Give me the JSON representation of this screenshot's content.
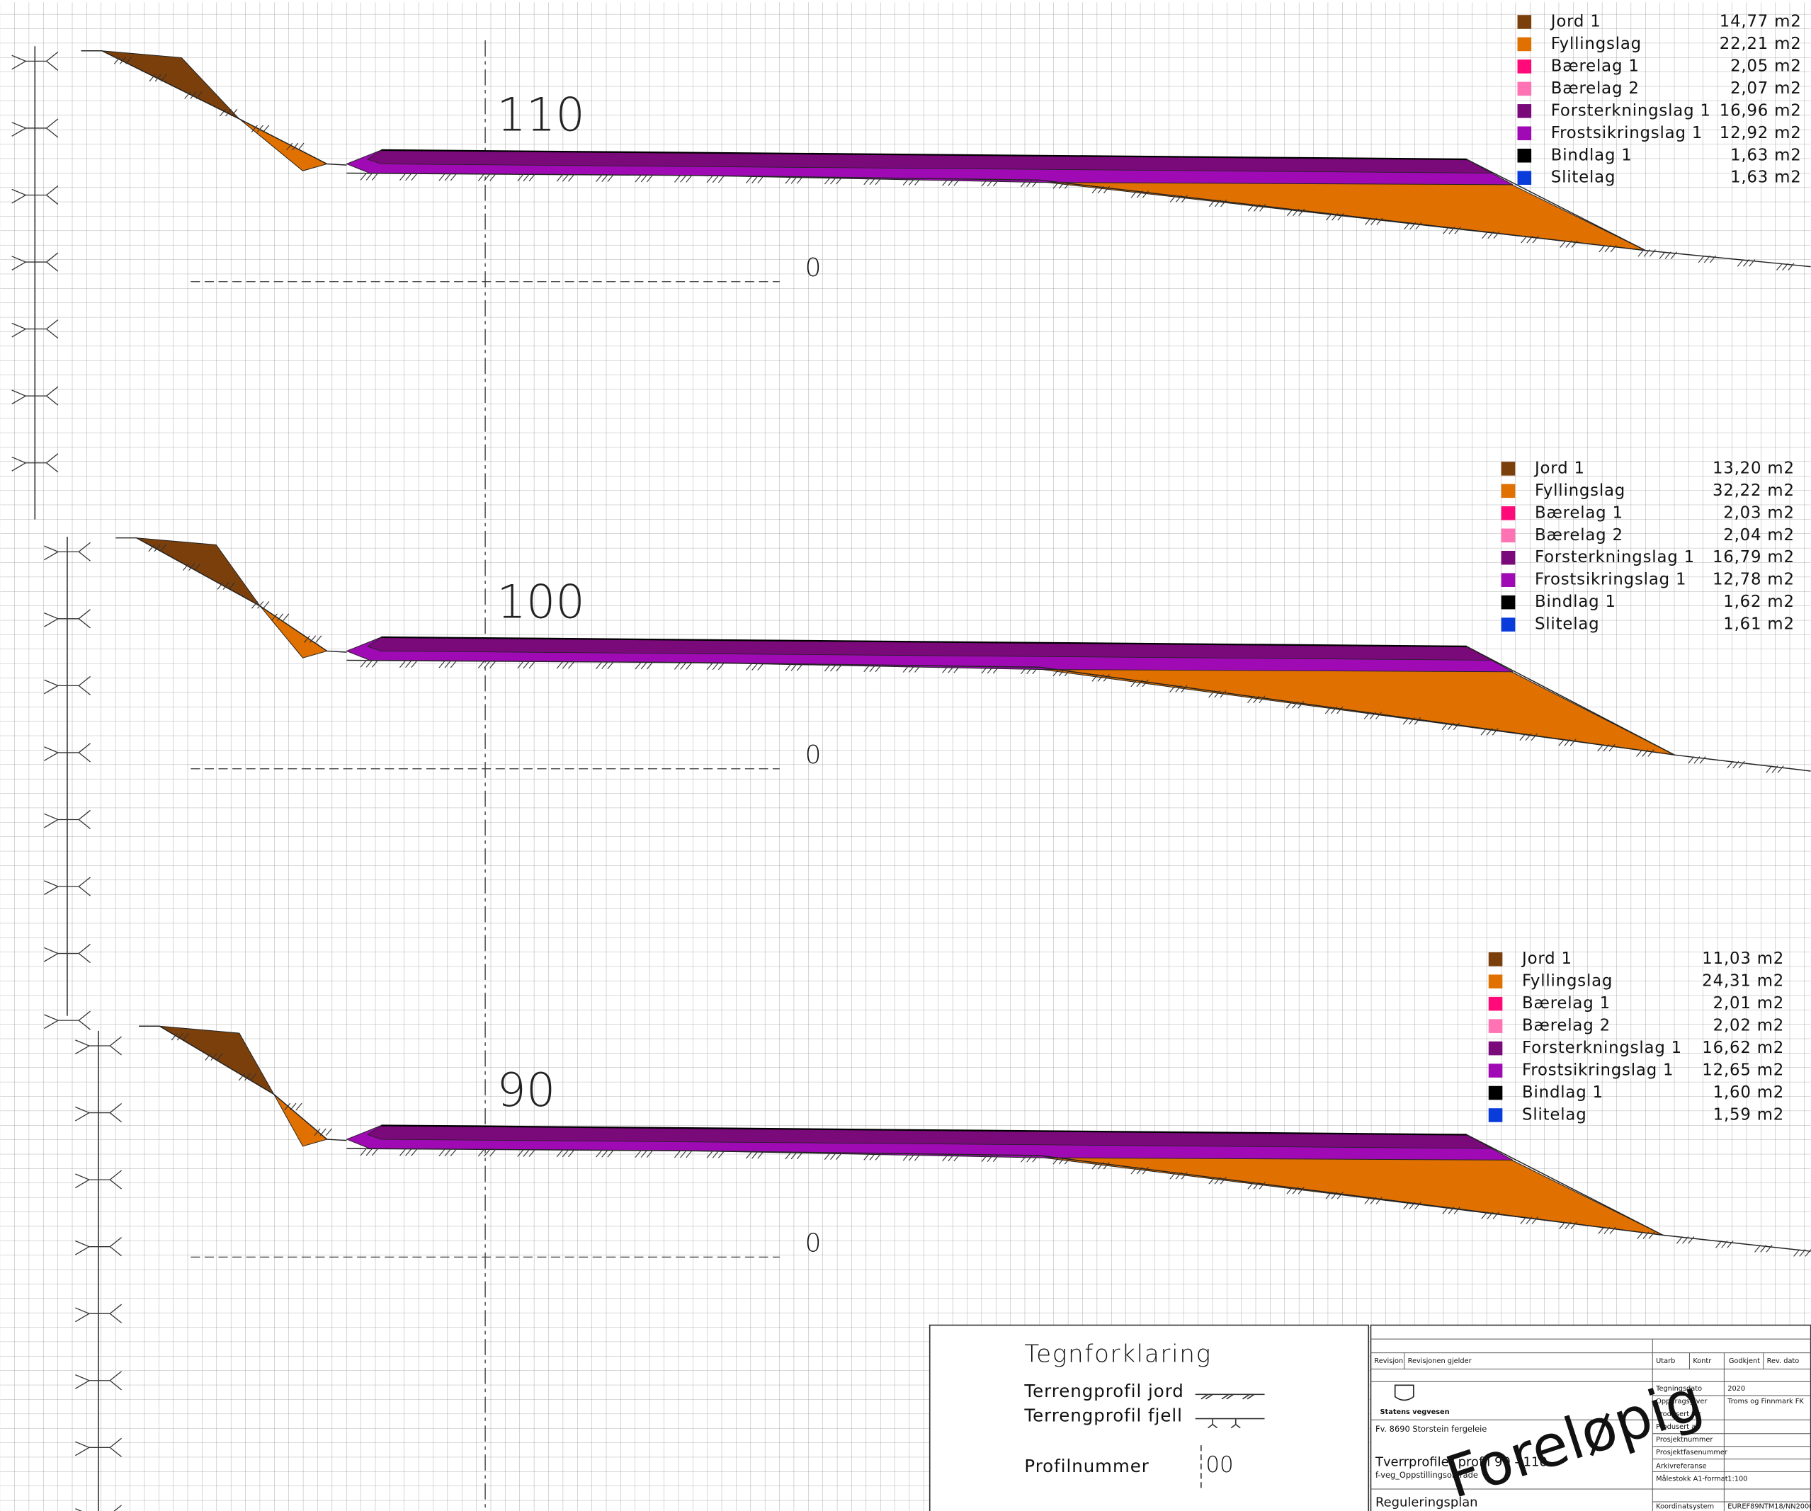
{
  "profiles": [
    {
      "station": "110",
      "datum": "0",
      "legend": [
        {
          "name": "Jord 1",
          "area": "14,77 m2",
          "color": "#7b3f0b"
        },
        {
          "name": "Fyllingslag",
          "area": "22,21 m2",
          "color": "#e07000"
        },
        {
          "name": "Bærelag 1",
          "area": "2,05 m2",
          "color": "#ff0a78"
        },
        {
          "name": "Bærelag 2",
          "area": "2,07 m2",
          "color": "#ff73b4"
        },
        {
          "name": "Forsterkningslag 1",
          "area": "16,96 m2",
          "color": "#7a0a7a"
        },
        {
          "name": "Frostsikringslag 1",
          "area": "12,92 m2",
          "color": "#a00ab4"
        },
        {
          "name": "Bindlag 1",
          "area": "1,63 m2",
          "color": "#000000"
        },
        {
          "name": "Slitelag",
          "area": "1,63 m2",
          "color": "#0a3cdc"
        }
      ]
    },
    {
      "station": "100",
      "datum": "0",
      "legend": [
        {
          "name": "Jord 1",
          "area": "13,20 m2",
          "color": "#7b3f0b"
        },
        {
          "name": "Fyllingslag",
          "area": "32,22 m2",
          "color": "#e07000"
        },
        {
          "name": "Bærelag 1",
          "area": "2,03 m2",
          "color": "#ff0a78"
        },
        {
          "name": "Bærelag 2",
          "area": "2,04 m2",
          "color": "#ff73b4"
        },
        {
          "name": "Forsterkningslag 1",
          "area": "16,79 m2",
          "color": "#7a0a7a"
        },
        {
          "name": "Frostsikringslag 1",
          "area": "12,78 m2",
          "color": "#a00ab4"
        },
        {
          "name": "Bindlag 1",
          "area": "1,62 m2",
          "color": "#000000"
        },
        {
          "name": "Slitelag",
          "area": "1,61 m2",
          "color": "#0a3cdc"
        }
      ]
    },
    {
      "station": "90",
      "datum": "0",
      "legend": [
        {
          "name": "Jord 1",
          "area": "11,03 m2",
          "color": "#7b3f0b"
        },
        {
          "name": "Fyllingslag",
          "area": "24,31 m2",
          "color": "#e07000"
        },
        {
          "name": "Bærelag 1",
          "area": "2,01 m2",
          "color": "#ff0a78"
        },
        {
          "name": "Bærelag 2",
          "area": "2,02 m2",
          "color": "#ff73b4"
        },
        {
          "name": "Forsterkningslag 1",
          "area": "16,62 m2",
          "color": "#7a0a7a"
        },
        {
          "name": "Frostsikringslag 1",
          "area": "12,65 m2",
          "color": "#a00ab4"
        },
        {
          "name": "Bindlag 1",
          "area": "1,60 m2",
          "color": "#000000"
        },
        {
          "name": "Slitelag",
          "area": "1,59 m2",
          "color": "#0a3cdc"
        }
      ]
    }
  ],
  "legend_box": {
    "title": "Tegnforklaring",
    "soil": "Terrengprofil jord",
    "rock": "Terrengprofil fjell",
    "profile": "Profilnummer",
    "profile_sample": "00"
  },
  "title_block": {
    "head": [
      "Revisjon",
      "Revisjonen gjelder",
      "Utarb",
      "Kontr",
      "Godkjent",
      "Rev. dato"
    ],
    "org": "Statens vegvesen",
    "project": "Fv. 8690 Storstein fergeleie",
    "drawing": "Tverrprofiler profil 90 - 110",
    "subtitle": "f-veg_Oppstillingsområde",
    "plan": "Reguleringsplan",
    "fields": [
      [
        "Tegningsdato",
        "2020"
      ],
      [
        "Oppdragsgiver",
        "Troms og Finnmark FK"
      ],
      [
        "Produsert for",
        ""
      ],
      [
        "Produsert av",
        ""
      ],
      [
        "Prosjektnummer",
        ""
      ],
      [
        "Prosjektfasenummer",
        ""
      ],
      [
        "Arkivreferanse",
        ""
      ],
      [
        "Målestokk A1-format",
        "1:100"
      ],
      [
        "Koordinatsystem",
        "EUREF89NTM18/NN2000"
      ]
    ],
    "stamp": "Foreløpig"
  }
}
